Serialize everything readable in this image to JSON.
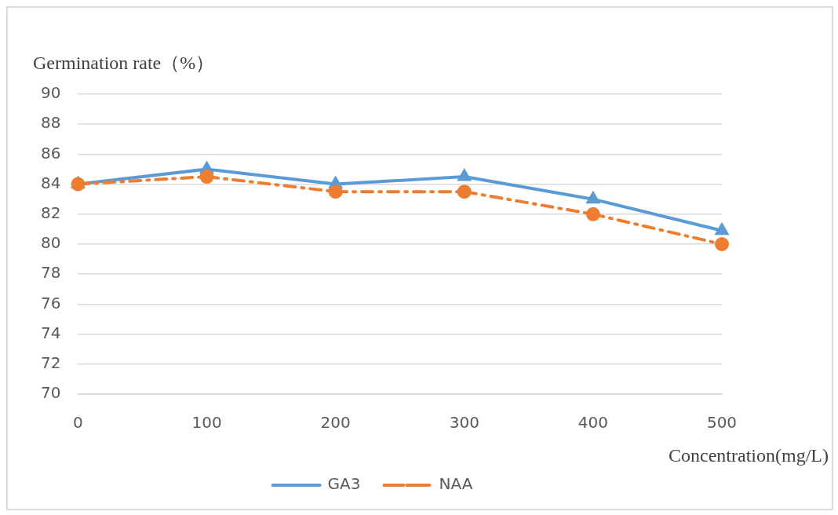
{
  "chart_data": {
    "type": "line",
    "ylabel": "Germination rate（%）",
    "xlabel": "Concentration(mg/L)",
    "categories": [
      "0",
      "100",
      "200",
      "300",
      "400",
      "500"
    ],
    "series": [
      {
        "name": "GA3",
        "color": "#5b9bd5",
        "values": [
          84,
          85,
          84,
          84.5,
          83,
          80.9
        ],
        "marker": "triangle",
        "line_style": "solid"
      },
      {
        "name": "NAA",
        "color": "#ed7d31",
        "values": [
          84,
          84.5,
          83.5,
          83.5,
          82,
          80
        ],
        "marker": "circle",
        "line_style": "dashed"
      }
    ],
    "ylim": [
      70,
      90
    ],
    "yticks": [
      70,
      72,
      74,
      76,
      78,
      80,
      82,
      84,
      86,
      88,
      90
    ],
    "grid": "y",
    "legend": "bottom"
  }
}
